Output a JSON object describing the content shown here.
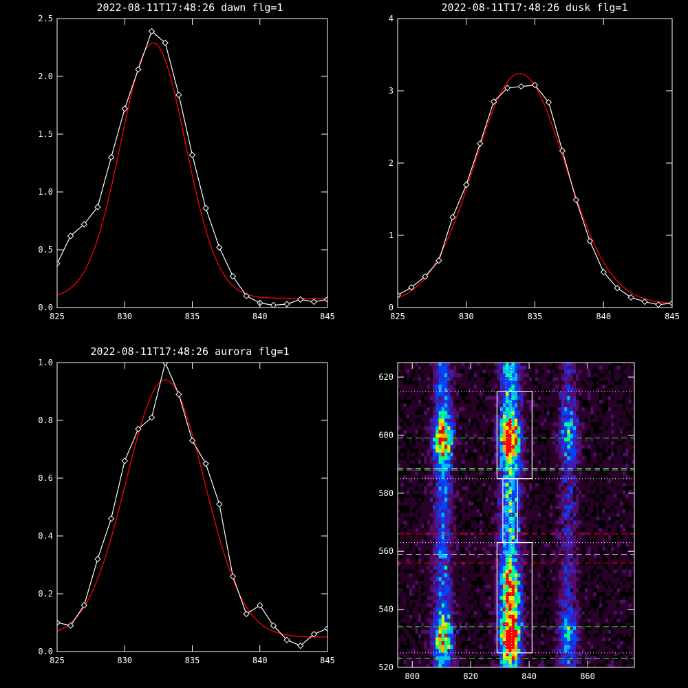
{
  "chart_data": [
    {
      "type": "line",
      "title": "2022-08-11T17:48:26 dawn flg=1",
      "xlim": [
        825,
        845
      ],
      "ylim": [
        0,
        2.5
      ],
      "x_ticks": [
        "825",
        "830",
        "835",
        "840",
        "845"
      ],
      "y_ticks": [
        "0.0",
        "0.5",
        "1.0",
        "1.5",
        "2.0",
        "2.5"
      ],
      "series": [
        {
          "role": "data",
          "color": "#ffffff",
          "marker": "diamond",
          "x": [
            825,
            826,
            827,
            828,
            829,
            830,
            831,
            832,
            833,
            834,
            835,
            836,
            837,
            838,
            839,
            840,
            841,
            842,
            843,
            844,
            845
          ],
          "y": [
            0.38,
            0.62,
            0.72,
            0.87,
            1.3,
            1.72,
            2.06,
            2.39,
            2.29,
            1.84,
            1.32,
            0.86,
            0.52,
            0.27,
            0.1,
            0.04,
            0.02,
            0.03,
            0.07,
            0.05,
            0.07
          ]
        },
        {
          "role": "fit",
          "color": "#ff0000",
          "gaussian": {
            "amplitude": 2.21,
            "center": 832.1,
            "sigma": 2.4,
            "offset": 0.08
          }
        }
      ]
    },
    {
      "type": "line",
      "title": "2022-08-11T17:48:26 dusk flg=1",
      "xlim": [
        825,
        845
      ],
      "ylim": [
        0,
        4
      ],
      "x_ticks": [
        "825",
        "830",
        "835",
        "840",
        "845"
      ],
      "y_ticks": [
        "0",
        "1",
        "2",
        "3",
        "4"
      ],
      "series": [
        {
          "role": "data",
          "color": "#ffffff",
          "marker": "diamond",
          "x": [
            825,
            826,
            827,
            828,
            829,
            830,
            831,
            832,
            833,
            834,
            835,
            836,
            837,
            838,
            839,
            840,
            841,
            842,
            843,
            844,
            845
          ],
          "y": [
            0.17,
            0.28,
            0.43,
            0.65,
            1.25,
            1.7,
            2.27,
            2.85,
            3.04,
            3.06,
            3.08,
            2.84,
            2.17,
            1.49,
            0.92,
            0.49,
            0.27,
            0.14,
            0.08,
            0.04,
            0.06
          ]
        },
        {
          "role": "fit",
          "color": "#ff0000",
          "gaussian": {
            "amplitude": 3.19,
            "center": 833.9,
            "sigma": 3.3,
            "offset": 0.05
          }
        }
      ]
    },
    {
      "type": "line",
      "title": "2022-08-11T17:48:26 aurora flg=1",
      "xlim": [
        825,
        845
      ],
      "ylim": [
        0,
        1.0
      ],
      "x_ticks": [
        "825",
        "830",
        "835",
        "840",
        "845"
      ],
      "y_ticks": [
        "0.0",
        "0.2",
        "0.4",
        "0.6",
        "0.8",
        "1.0"
      ],
      "series": [
        {
          "role": "data",
          "color": "#ffffff",
          "marker": "diamond",
          "x": [
            825,
            826,
            827,
            828,
            829,
            830,
            831,
            832,
            833,
            834,
            835,
            836,
            837,
            838,
            839,
            840,
            841,
            842,
            843,
            844,
            845
          ],
          "y": [
            0.1,
            0.09,
            0.16,
            0.32,
            0.46,
            0.66,
            0.77,
            0.81,
            1.0,
            0.89,
            0.73,
            0.65,
            0.51,
            0.26,
            0.13,
            0.16,
            0.09,
            0.04,
            0.02,
            0.06,
            0.08
          ]
        },
        {
          "role": "fit",
          "color": "#ff0000",
          "gaussian": {
            "amplitude": 0.89,
            "center": 833.0,
            "sigma": 2.9,
            "offset": 0.05
          }
        }
      ]
    },
    {
      "type": "heatmap",
      "title": "",
      "xlim": [
        795,
        876
      ],
      "ylim": [
        520,
        625
      ],
      "x_ticks": [
        "800",
        "820",
        "840",
        "860"
      ],
      "y_ticks": [
        "520",
        "540",
        "560",
        "580",
        "600",
        "620"
      ],
      "colormap": [
        "#000000",
        "#280028",
        "#500c66",
        "#3a1fb8",
        "#0044ff",
        "#00bbff",
        "#00ff88",
        "#ccff00",
        "#ffaa00",
        "#ff0000"
      ],
      "emission_columns": [
        {
          "x_center": 810,
          "width": 4.5,
          "peak": 0.72
        },
        {
          "x_center": 833,
          "width": 5.0,
          "peak": 1.0
        },
        {
          "x_center": 853,
          "width": 4.5,
          "peak": 0.42
        }
      ],
      "emission_blobs": [
        {
          "x": 810,
          "y": 598,
          "peak": 0.85
        },
        {
          "x": 810,
          "y": 530,
          "peak": 0.75
        },
        {
          "x": 833,
          "y": 598,
          "peak": 1.0
        },
        {
          "x": 833,
          "y": 530,
          "peak": 1.0
        },
        {
          "x": 833,
          "y": 545,
          "peak": 0.7
        },
        {
          "x": 853,
          "y": 600,
          "peak": 0.5
        },
        {
          "x": 853,
          "y": 530,
          "peak": 0.5
        }
      ],
      "boxes": [
        {
          "x0": 829,
          "x1": 841,
          "y0": 585,
          "y1": 615
        },
        {
          "x0": 829,
          "x1": 841,
          "y0": 525,
          "y1": 563
        },
        {
          "x0": 831,
          "x1": 836,
          "y0": 563,
          "y1": 585
        }
      ],
      "vertical_lines": [
        {
          "x": 832,
          "color": "#ffffff",
          "style": "dotted"
        },
        {
          "x": 834,
          "color": "#ffffff",
          "style": "dotted"
        }
      ],
      "horizontal_lines": [
        {
          "y": 615,
          "color": "#ffffff",
          "style": "dotted"
        },
        {
          "y": 599,
          "color": "#00ff00",
          "style": "dashed"
        },
        {
          "y": 588.5,
          "color": "#ffffff",
          "style": "dashed"
        },
        {
          "y": 588,
          "color": "#00ff00",
          "style": "dashed"
        },
        {
          "y": 585,
          "color": "#ffffff",
          "style": "dotted"
        },
        {
          "y": 566,
          "color": "#ff0000",
          "style": "dashed"
        },
        {
          "y": 563,
          "color": "#ffffff",
          "style": "dotted"
        },
        {
          "y": 559,
          "color": "#ffffff",
          "style": "dashed"
        },
        {
          "y": 556,
          "color": "#ff0000",
          "style": "dashed"
        },
        {
          "y": 534,
          "color": "#00ff00",
          "style": "dashed"
        },
        {
          "y": 525,
          "color": "#ffffff",
          "style": "dotted"
        },
        {
          "y": 523,
          "color": "#00ff00",
          "style": "dashed"
        }
      ]
    }
  ]
}
